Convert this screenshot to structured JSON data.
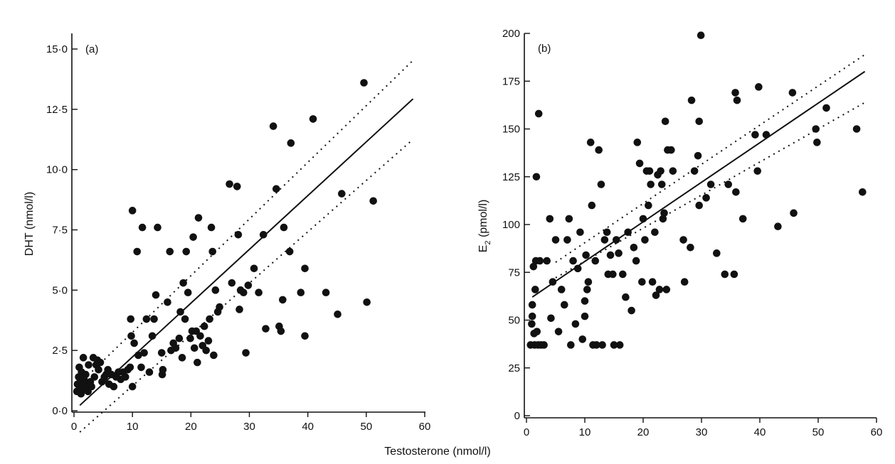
{
  "figure": {
    "shared_xlabel": "Testosterone (nmol/l)"
  },
  "chart_data": [
    {
      "type": "scatter",
      "panel_label": "(a)",
      "xlabel": "",
      "ylabel": "DHT (nmol/l)",
      "xlim": [
        0,
        60
      ],
      "ylim": [
        0,
        15
      ],
      "x_ticks": [
        0,
        10,
        20,
        30,
        40,
        50,
        60
      ],
      "x_tick_labels": [
        "0",
        "10",
        "20",
        "30",
        "40",
        "50",
        "60"
      ],
      "y_ticks": [
        0,
        2.5,
        5,
        7.5,
        10,
        12.5,
        15
      ],
      "y_tick_labels": [
        "0·0",
        "2·5",
        "5·0",
        "7·5",
        "10·0",
        "12·5",
        "15·0"
      ],
      "grid": false,
      "regression": {
        "slope": 0.223,
        "intercept": 0.0
      },
      "ci_upper": {
        "slope": 0.235,
        "intercept": 0.9
      },
      "ci_lower": {
        "slope": 0.213,
        "intercept": -1.1
      },
      "fit_x_range": [
        1,
        58
      ],
      "points": [
        {
          "x": 0.5,
          "y": 0.8
        },
        {
          "x": 0.6,
          "y": 1.1
        },
        {
          "x": 0.8,
          "y": 1.4
        },
        {
          "x": 0.9,
          "y": 1.8
        },
        {
          "x": 1.0,
          "y": 0.9
        },
        {
          "x": 1.1,
          "y": 1.2
        },
        {
          "x": 1.2,
          "y": 0.7
        },
        {
          "x": 1.3,
          "y": 1.6
        },
        {
          "x": 1.5,
          "y": 1.0
        },
        {
          "x": 1.6,
          "y": 2.2
        },
        {
          "x": 1.7,
          "y": 1.3
        },
        {
          "x": 1.8,
          "y": 0.9
        },
        {
          "x": 2.0,
          "y": 1.5
        },
        {
          "x": 2.2,
          "y": 1.1
        },
        {
          "x": 2.4,
          "y": 0.8
        },
        {
          "x": 2.5,
          "y": 1.9
        },
        {
          "x": 2.8,
          "y": 1.2
        },
        {
          "x": 3.0,
          "y": 1.0
        },
        {
          "x": 3.3,
          "y": 2.2
        },
        {
          "x": 3.5,
          "y": 1.4
        },
        {
          "x": 3.8,
          "y": 1.9
        },
        {
          "x": 4.0,
          "y": 2.1
        },
        {
          "x": 4.2,
          "y": 1.7
        },
        {
          "x": 4.5,
          "y": 2.0
        },
        {
          "x": 4.8,
          "y": 1.2
        },
        {
          "x": 5.2,
          "y": 1.4
        },
        {
          "x": 5.5,
          "y": 1.5
        },
        {
          "x": 5.8,
          "y": 1.7
        },
        {
          "x": 6.0,
          "y": 1.1
        },
        {
          "x": 6.4,
          "y": 1.5
        },
        {
          "x": 6.8,
          "y": 1.0
        },
        {
          "x": 7.2,
          "y": 1.4
        },
        {
          "x": 7.6,
          "y": 1.6
        },
        {
          "x": 8.0,
          "y": 1.3
        },
        {
          "x": 8.4,
          "y": 1.6
        },
        {
          "x": 8.8,
          "y": 1.4
        },
        {
          "x": 9.2,
          "y": 1.7
        },
        {
          "x": 9.6,
          "y": 1.8
        },
        {
          "x": 10.0,
          "y": 1.0
        },
        {
          "x": 10.3,
          "y": 2.8
        },
        {
          "x": 9.8,
          "y": 3.1
        },
        {
          "x": 9.7,
          "y": 3.8
        },
        {
          "x": 10.0,
          "y": 8.3
        },
        {
          "x": 10.8,
          "y": 6.6
        },
        {
          "x": 11.0,
          "y": 2.3
        },
        {
          "x": 11.5,
          "y": 1.8
        },
        {
          "x": 11.7,
          "y": 7.6
        },
        {
          "x": 12.0,
          "y": 2.4
        },
        {
          "x": 12.4,
          "y": 3.8
        },
        {
          "x": 12.9,
          "y": 1.6
        },
        {
          "x": 13.4,
          "y": 3.1
        },
        {
          "x": 13.7,
          "y": 3.8
        },
        {
          "x": 14.0,
          "y": 4.8
        },
        {
          "x": 14.3,
          "y": 7.6
        },
        {
          "x": 15.0,
          "y": 2.4
        },
        {
          "x": 15.1,
          "y": 1.5
        },
        {
          "x": 15.2,
          "y": 1.7
        },
        {
          "x": 16.0,
          "y": 4.5
        },
        {
          "x": 16.4,
          "y": 6.6
        },
        {
          "x": 16.6,
          "y": 2.5
        },
        {
          "x": 17.0,
          "y": 2.8
        },
        {
          "x": 17.4,
          "y": 2.6
        },
        {
          "x": 18.0,
          "y": 3.0
        },
        {
          "x": 18.2,
          "y": 4.1
        },
        {
          "x": 18.5,
          "y": 2.2
        },
        {
          "x": 18.7,
          "y": 5.3
        },
        {
          "x": 19.0,
          "y": 3.8
        },
        {
          "x": 19.2,
          "y": 6.6
        },
        {
          "x": 19.5,
          "y": 4.9
        },
        {
          "x": 19.9,
          "y": 3.0
        },
        {
          "x": 20.2,
          "y": 3.3
        },
        {
          "x": 20.4,
          "y": 7.2
        },
        {
          "x": 20.6,
          "y": 2.6
        },
        {
          "x": 20.9,
          "y": 3.3
        },
        {
          "x": 21.1,
          "y": 2.0
        },
        {
          "x": 21.3,
          "y": 8.0
        },
        {
          "x": 21.6,
          "y": 3.1
        },
        {
          "x": 22.0,
          "y": 2.7
        },
        {
          "x": 22.3,
          "y": 3.5
        },
        {
          "x": 22.6,
          "y": 2.5
        },
        {
          "x": 23.0,
          "y": 2.9
        },
        {
          "x": 23.2,
          "y": 3.8
        },
        {
          "x": 23.5,
          "y": 7.6
        },
        {
          "x": 23.7,
          "y": 6.6
        },
        {
          "x": 23.9,
          "y": 2.3
        },
        {
          "x": 24.2,
          "y": 5.0
        },
        {
          "x": 24.6,
          "y": 4.1
        },
        {
          "x": 24.9,
          "y": 4.3
        },
        {
          "x": 26.6,
          "y": 9.4
        },
        {
          "x": 27.0,
          "y": 5.3
        },
        {
          "x": 27.9,
          "y": 9.3
        },
        {
          "x": 28.1,
          "y": 7.3
        },
        {
          "x": 28.3,
          "y": 4.2
        },
        {
          "x": 28.5,
          "y": 5.0
        },
        {
          "x": 29.0,
          "y": 4.9
        },
        {
          "x": 29.4,
          "y": 2.4
        },
        {
          "x": 29.8,
          "y": 5.2
        },
        {
          "x": 30.8,
          "y": 5.9
        },
        {
          "x": 31.6,
          "y": 4.9
        },
        {
          "x": 32.4,
          "y": 7.3
        },
        {
          "x": 32.8,
          "y": 3.4
        },
        {
          "x": 34.1,
          "y": 11.8
        },
        {
          "x": 34.6,
          "y": 9.2
        },
        {
          "x": 35.1,
          "y": 3.5
        },
        {
          "x": 35.4,
          "y": 3.3
        },
        {
          "x": 35.7,
          "y": 4.6
        },
        {
          "x": 35.9,
          "y": 7.6
        },
        {
          "x": 36.9,
          "y": 6.6
        },
        {
          "x": 37.1,
          "y": 11.1
        },
        {
          "x": 38.8,
          "y": 4.9
        },
        {
          "x": 39.5,
          "y": 5.9
        },
        {
          "x": 39.5,
          "y": 3.1
        },
        {
          "x": 40.9,
          "y": 12.1
        },
        {
          "x": 43.1,
          "y": 4.9
        },
        {
          "x": 45.1,
          "y": 4.0
        },
        {
          "x": 45.8,
          "y": 9.0
        },
        {
          "x": 49.6,
          "y": 13.6
        },
        {
          "x": 50.1,
          "y": 4.5
        },
        {
          "x": 51.2,
          "y": 8.7
        }
      ]
    },
    {
      "type": "scatter",
      "panel_label": "(b)",
      "xlabel": "",
      "ylabel": "E2 (pmol/l)",
      "ylabel_main": "E",
      "ylabel_sub": "2",
      "ylabel_rest": " (pmol/l)",
      "xlim": [
        0,
        60
      ],
      "ylim": [
        0,
        200
      ],
      "x_ticks": [
        0,
        10,
        20,
        30,
        40,
        50,
        60
      ],
      "x_tick_labels": [
        "0",
        "10",
        "20",
        "30",
        "40",
        "50",
        "60"
      ],
      "y_ticks": [
        0,
        25,
        50,
        75,
        100,
        125,
        150,
        175,
        200
      ],
      "y_tick_labels": [
        "0",
        "25",
        "50",
        "75",
        "100",
        "125",
        "150",
        "175",
        "200"
      ],
      "grid": false,
      "regression": {
        "slope": 2.07,
        "intercept": 60.0
      },
      "ci_upper": {
        "slope": 2.05,
        "intercept": 70.0
      },
      "ci_lower": {
        "slope": 1.73,
        "intercept": 63.5
      },
      "fit_x_range": [
        1,
        58
      ],
      "ci_x_range": [
        5,
        58
      ],
      "points": [
        {
          "x": 0.7,
          "y": 37
        },
        {
          "x": 0.9,
          "y": 48
        },
        {
          "x": 1.0,
          "y": 52
        },
        {
          "x": 1.0,
          "y": 58
        },
        {
          "x": 1.2,
          "y": 78
        },
        {
          "x": 1.3,
          "y": 43
        },
        {
          "x": 1.4,
          "y": 37
        },
        {
          "x": 1.5,
          "y": 66
        },
        {
          "x": 1.6,
          "y": 81
        },
        {
          "x": 1.7,
          "y": 125
        },
        {
          "x": 1.8,
          "y": 44
        },
        {
          "x": 2.0,
          "y": 37
        },
        {
          "x": 2.1,
          "y": 158
        },
        {
          "x": 2.3,
          "y": 81
        },
        {
          "x": 2.5,
          "y": 37
        },
        {
          "x": 3.0,
          "y": 37
        },
        {
          "x": 3.5,
          "y": 81
        },
        {
          "x": 4.0,
          "y": 103
        },
        {
          "x": 4.2,
          "y": 51
        },
        {
          "x": 4.5,
          "y": 70
        },
        {
          "x": 5.0,
          "y": 92
        },
        {
          "x": 5.5,
          "y": 44
        },
        {
          "x": 6.0,
          "y": 66
        },
        {
          "x": 6.5,
          "y": 58
        },
        {
          "x": 7.0,
          "y": 92
        },
        {
          "x": 7.3,
          "y": 103
        },
        {
          "x": 7.6,
          "y": 37
        },
        {
          "x": 8.0,
          "y": 81
        },
        {
          "x": 8.4,
          "y": 48
        },
        {
          "x": 8.8,
          "y": 77
        },
        {
          "x": 9.2,
          "y": 96
        },
        {
          "x": 9.6,
          "y": 40
        },
        {
          "x": 10.0,
          "y": 52
        },
        {
          "x": 10.0,
          "y": 60
        },
        {
          "x": 10.2,
          "y": 84
        },
        {
          "x": 10.4,
          "y": 66
        },
        {
          "x": 10.6,
          "y": 70
        },
        {
          "x": 11.0,
          "y": 143
        },
        {
          "x": 11.2,
          "y": 110
        },
        {
          "x": 11.4,
          "y": 37
        },
        {
          "x": 11.8,
          "y": 81
        },
        {
          "x": 12.0,
          "y": 37
        },
        {
          "x": 12.4,
          "y": 139
        },
        {
          "x": 12.8,
          "y": 121
        },
        {
          "x": 13.0,
          "y": 37
        },
        {
          "x": 13.4,
          "y": 92
        },
        {
          "x": 13.8,
          "y": 96
        },
        {
          "x": 14.0,
          "y": 74
        },
        {
          "x": 14.4,
          "y": 84
        },
        {
          "x": 14.8,
          "y": 74
        },
        {
          "x": 15.0,
          "y": 37
        },
        {
          "x": 15.4,
          "y": 92
        },
        {
          "x": 15.8,
          "y": 85
        },
        {
          "x": 16.0,
          "y": 37
        },
        {
          "x": 16.5,
          "y": 74
        },
        {
          "x": 17.0,
          "y": 62
        },
        {
          "x": 17.4,
          "y": 96
        },
        {
          "x": 18.0,
          "y": 55
        },
        {
          "x": 18.4,
          "y": 88
        },
        {
          "x": 18.8,
          "y": 81
        },
        {
          "x": 19.0,
          "y": 143
        },
        {
          "x": 19.4,
          "y": 132
        },
        {
          "x": 19.8,
          "y": 70
        },
        {
          "x": 20.0,
          "y": 103
        },
        {
          "x": 20.3,
          "y": 92
        },
        {
          "x": 20.6,
          "y": 128
        },
        {
          "x": 20.9,
          "y": 110
        },
        {
          "x": 21.1,
          "y": 128
        },
        {
          "x": 21.3,
          "y": 121
        },
        {
          "x": 21.6,
          "y": 70
        },
        {
          "x": 22.0,
          "y": 96
        },
        {
          "x": 22.2,
          "y": 63
        },
        {
          "x": 22.5,
          "y": 126
        },
        {
          "x": 22.8,
          "y": 66
        },
        {
          "x": 23.0,
          "y": 128
        },
        {
          "x": 23.2,
          "y": 121
        },
        {
          "x": 23.4,
          "y": 103
        },
        {
          "x": 23.6,
          "y": 106
        },
        {
          "x": 23.8,
          "y": 154
        },
        {
          "x": 24.0,
          "y": 66
        },
        {
          "x": 24.2,
          "y": 139
        },
        {
          "x": 24.8,
          "y": 139
        },
        {
          "x": 25.1,
          "y": 128
        },
        {
          "x": 26.9,
          "y": 92
        },
        {
          "x": 27.1,
          "y": 70
        },
        {
          "x": 28.1,
          "y": 88
        },
        {
          "x": 28.3,
          "y": 165
        },
        {
          "x": 28.8,
          "y": 128
        },
        {
          "x": 29.4,
          "y": 136
        },
        {
          "x": 29.6,
          "y": 154
        },
        {
          "x": 29.6,
          "y": 110
        },
        {
          "x": 29.9,
          "y": 199
        },
        {
          "x": 30.8,
          "y": 114
        },
        {
          "x": 31.6,
          "y": 121
        },
        {
          "x": 32.6,
          "y": 85
        },
        {
          "x": 34.0,
          "y": 74
        },
        {
          "x": 34.6,
          "y": 121
        },
        {
          "x": 35.6,
          "y": 74
        },
        {
          "x": 35.8,
          "y": 169
        },
        {
          "x": 35.9,
          "y": 117
        },
        {
          "x": 36.1,
          "y": 165
        },
        {
          "x": 37.1,
          "y": 103
        },
        {
          "x": 39.2,
          "y": 147
        },
        {
          "x": 39.6,
          "y": 128
        },
        {
          "x": 39.8,
          "y": 172
        },
        {
          "x": 41.1,
          "y": 147
        },
        {
          "x": 43.1,
          "y": 99
        },
        {
          "x": 45.6,
          "y": 169
        },
        {
          "x": 45.8,
          "y": 106
        },
        {
          "x": 49.6,
          "y": 150
        },
        {
          "x": 49.8,
          "y": 143
        },
        {
          "x": 51.4,
          "y": 161
        },
        {
          "x": 56.6,
          "y": 150
        },
        {
          "x": 57.6,
          "y": 117
        }
      ]
    }
  ]
}
